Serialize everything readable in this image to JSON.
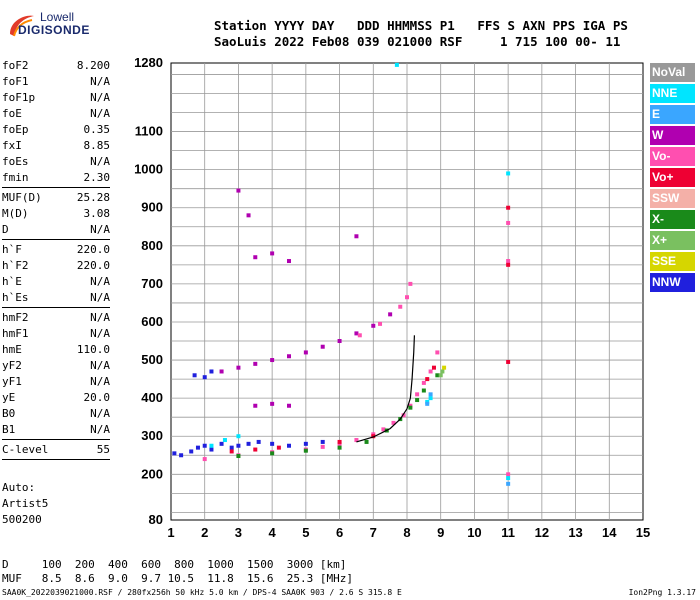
{
  "logo": {
    "line1": "Lowell",
    "line2": "DIGISONDE"
  },
  "header": {
    "line1": "Station YYYY DAY   DDD HHMMSS P1   FFS S AXN PPS IGA PS",
    "line2": "SaoLuis 2022 Feb08 039 021000 RSF     1 715 100 00- 11"
  },
  "params": [
    {
      "k": "foF2",
      "v": "8.200"
    },
    {
      "k": "foF1",
      "v": "N/A"
    },
    {
      "k": "foF1p",
      "v": "N/A"
    },
    {
      "k": "foE",
      "v": "N/A"
    },
    {
      "k": "foEp",
      "v": "0.35"
    },
    {
      "k": "fxI",
      "v": "8.85"
    },
    {
      "k": "foEs",
      "v": "N/A"
    },
    {
      "k": "fmin",
      "v": "2.30"
    },
    {
      "k": "MUF(D)",
      "v": "25.28"
    },
    {
      "k": "M(D)",
      "v": "3.08"
    },
    {
      "k": "D",
      "v": "N/A"
    },
    {
      "k": "h`F",
      "v": "220.0"
    },
    {
      "k": "h`F2",
      "v": "220.0"
    },
    {
      "k": "h`E",
      "v": "N/A"
    },
    {
      "k": "h`Es",
      "v": "N/A"
    },
    {
      "k": "hmF2",
      "v": "N/A"
    },
    {
      "k": "hmF1",
      "v": "N/A"
    },
    {
      "k": "hmE",
      "v": "110.0"
    },
    {
      "k": "yF2",
      "v": "N/A"
    },
    {
      "k": "yF1",
      "v": "N/A"
    },
    {
      "k": "yE",
      "v": "20.0"
    },
    {
      "k": "B0",
      "v": "N/A"
    },
    {
      "k": "B1",
      "v": "N/A"
    },
    {
      "k": "C-level",
      "v": "55"
    }
  ],
  "auto": {
    "line1": "Auto:",
    "line2": "Artist5",
    "line3": "500200"
  },
  "muf_table": {
    "line1": "D     100  200  400  600  800  1000  1500  3000 [km]",
    "line2": "MUF   8.5  8.6  9.0  9.7 10.5  11.8  15.6  25.3 [MHz]"
  },
  "footer": {
    "text": "SAA0K_2022039021000.RSF / 280fx256h 50 kHz 5.0 km / DPS-4 SAA0K 903 / 2.6 S 315.8 E",
    "version": "Ion2Png 1.3.17"
  },
  "legend": [
    {
      "label": "NoVal",
      "color": "#999999"
    },
    {
      "label": "NNE",
      "color": "#00e5ff"
    },
    {
      "label": "E",
      "color": "#3aa6ff"
    },
    {
      "label": "W",
      "color": "#b000b0"
    },
    {
      "label": "Vo-",
      "color": "#ff4fb0"
    },
    {
      "label": "Vo+",
      "color": "#ee0033"
    },
    {
      "label": "SSW",
      "color": "#f4b0a8"
    },
    {
      "label": "X-",
      "color": "#1a8a1a"
    },
    {
      "label": "X+",
      "color": "#7ac060"
    },
    {
      "label": "SSE",
      "color": "#d6d600"
    },
    {
      "label": "NNW",
      "color": "#2020dd"
    }
  ],
  "chart_data": {
    "type": "scatter",
    "title": "",
    "xlabel": "",
    "ylabel": "",
    "xlim": [
      1,
      15
    ],
    "ylim": [
      80,
      1280
    ],
    "x_ticks": [
      1,
      2,
      3,
      4,
      5,
      6,
      7,
      8,
      9,
      10,
      11,
      12,
      13,
      14,
      15
    ],
    "y_tick_labels": [
      {
        "v": 80,
        "t": "80"
      },
      {
        "v": 200,
        "t": "200"
      },
      {
        "v": 300,
        "t": "300"
      },
      {
        "v": 400,
        "t": "400"
      },
      {
        "v": 500,
        "t": "500"
      },
      {
        "v": 600,
        "t": "600"
      },
      {
        "v": 700,
        "t": "700"
      },
      {
        "v": 800,
        "t": "800"
      },
      {
        "v": 900,
        "t": "900"
      },
      {
        "v": 1000,
        "t": "1000"
      },
      {
        "v": 1100,
        "t": "1100"
      },
      {
        "v": 1280,
        "t": "1280"
      }
    ],
    "grid": true,
    "series": [
      {
        "color": "#2020dd",
        "points": [
          [
            1.1,
            255
          ],
          [
            1.3,
            250
          ],
          [
            1.6,
            260
          ],
          [
            1.8,
            270
          ],
          [
            2,
            275
          ],
          [
            2.2,
            265
          ],
          [
            2.5,
            280
          ],
          [
            2.8,
            270
          ],
          [
            3,
            275
          ],
          [
            3.3,
            280
          ],
          [
            3.6,
            285
          ],
          [
            4,
            280
          ],
          [
            4.5,
            275
          ],
          [
            5,
            280
          ],
          [
            5.5,
            285
          ],
          [
            1.7,
            460
          ],
          [
            2,
            455
          ],
          [
            2.2,
            470
          ]
        ]
      },
      {
        "color": "#b000b0",
        "points": [
          [
            2.5,
            470
          ],
          [
            3,
            480
          ],
          [
            3.5,
            490
          ],
          [
            4,
            500
          ],
          [
            4.5,
            510
          ],
          [
            5,
            520
          ],
          [
            5.5,
            535
          ],
          [
            6,
            550
          ],
          [
            6.5,
            570
          ],
          [
            7,
            590
          ],
          [
            7.5,
            620
          ],
          [
            3.5,
            380
          ],
          [
            4,
            385
          ],
          [
            4.5,
            380
          ],
          [
            3.5,
            770
          ],
          [
            4,
            780
          ],
          [
            4.5,
            760
          ],
          [
            3,
            945
          ],
          [
            3.3,
            880
          ],
          [
            6.5,
            825
          ]
        ]
      },
      {
        "color": "#ff4fb0",
        "points": [
          [
            2,
            240
          ],
          [
            3,
            250
          ],
          [
            4,
            258
          ],
          [
            5,
            265
          ],
          [
            5.5,
            272
          ],
          [
            6,
            280
          ],
          [
            6.5,
            290
          ],
          [
            7,
            305
          ],
          [
            7.3,
            318
          ],
          [
            7.6,
            335
          ],
          [
            7.9,
            355
          ],
          [
            8.1,
            380
          ],
          [
            8.3,
            410
          ],
          [
            8.5,
            440
          ],
          [
            8.7,
            470
          ],
          [
            8.9,
            520
          ],
          [
            6.6,
            565
          ],
          [
            7.2,
            595
          ],
          [
            7.8,
            640
          ],
          [
            8,
            665
          ],
          [
            8.1,
            700
          ],
          [
            11,
            860
          ],
          [
            11,
            760
          ],
          [
            11,
            200
          ]
        ]
      },
      {
        "color": "#1a8a1a",
        "points": [
          [
            3,
            248
          ],
          [
            4,
            255
          ],
          [
            5,
            262
          ],
          [
            6,
            270
          ],
          [
            6.8,
            285
          ],
          [
            7.4,
            315
          ],
          [
            7.8,
            345
          ],
          [
            8.1,
            375
          ],
          [
            8.3,
            395
          ],
          [
            8.5,
            420
          ],
          [
            8.9,
            460
          ]
        ]
      },
      {
        "color": "#00e5ff",
        "points": [
          [
            2.2,
            275
          ],
          [
            2.6,
            290
          ],
          [
            3,
            300
          ],
          [
            8.6,
            390
          ],
          [
            8.7,
            400
          ],
          [
            11,
            990
          ],
          [
            11,
            190
          ],
          [
            7.7,
            1275
          ]
        ]
      },
      {
        "color": "#3aa6ff",
        "points": [
          [
            8.6,
            385
          ],
          [
            8.7,
            410
          ],
          [
            11,
            175
          ]
        ]
      },
      {
        "color": "#ee0033",
        "points": [
          [
            2.8,
            260
          ],
          [
            3.5,
            265
          ],
          [
            4.2,
            270
          ],
          [
            6,
            285
          ],
          [
            7,
            300
          ],
          [
            8.6,
            450
          ],
          [
            8.8,
            480
          ],
          [
            11,
            900
          ],
          [
            11,
            750
          ],
          [
            11,
            495
          ]
        ]
      },
      {
        "color": "#7ac060",
        "points": [
          [
            9,
            460
          ],
          [
            9.05,
            470
          ]
        ]
      },
      {
        "color": "#d6d600",
        "points": [
          [
            9.1,
            480
          ]
        ]
      }
    ],
    "trace": {
      "color": "#000000",
      "points": [
        [
          6.5,
          285
        ],
        [
          7,
          298
        ],
        [
          7.5,
          320
        ],
        [
          7.8,
          345
        ],
        [
          8,
          372
        ],
        [
          8.1,
          400
        ],
        [
          8.15,
          450
        ],
        [
          8.2,
          520
        ],
        [
          8.22,
          565
        ]
      ]
    }
  }
}
